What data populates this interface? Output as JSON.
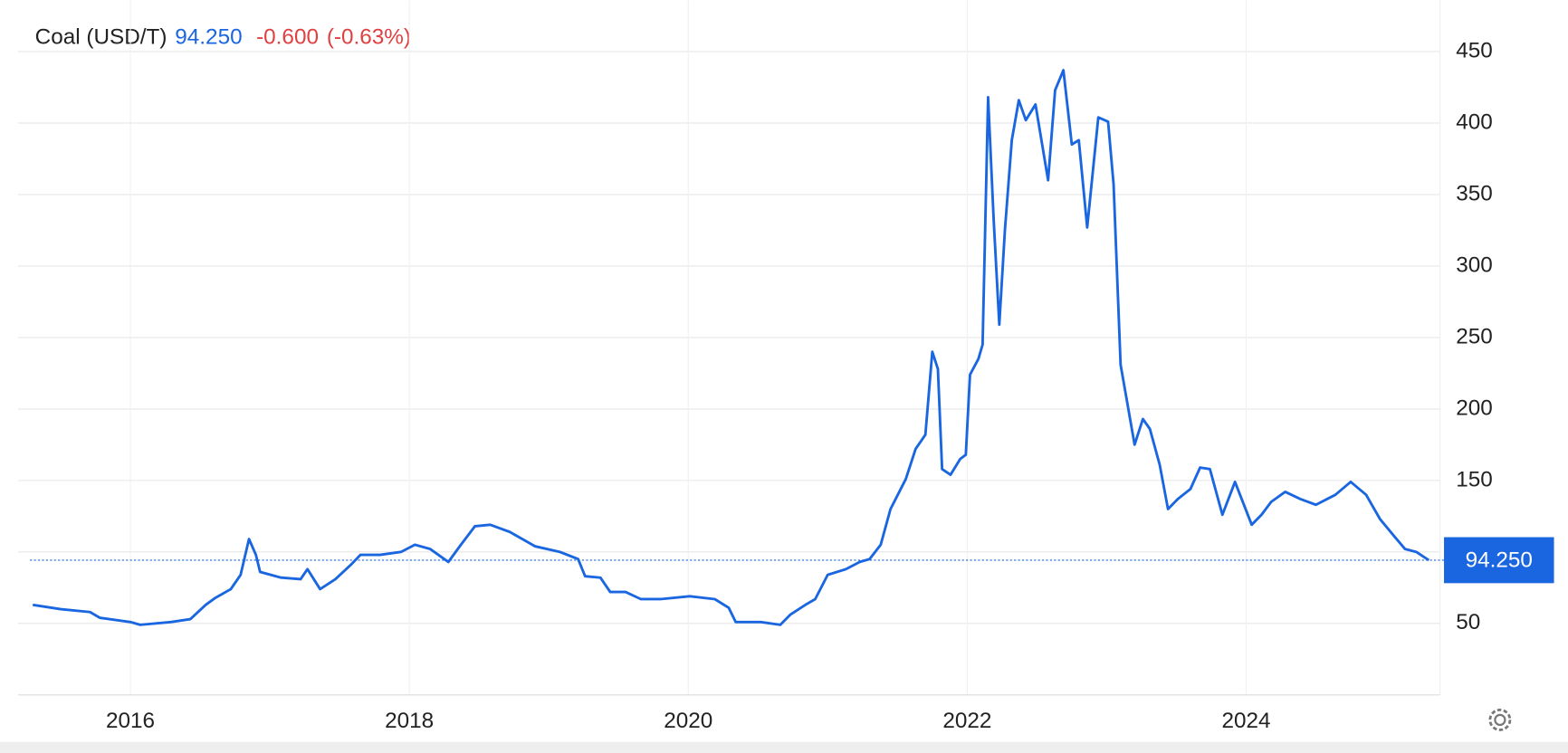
{
  "chart_data": {
    "type": "line",
    "title": "Coal (USD/T)",
    "price": "94.250",
    "change": "-0.600",
    "change_pct": "(-0.63%)",
    "x": [
      2015.3,
      2015.5,
      2015.71,
      2015.78,
      2016.0,
      2016.07,
      2016.29,
      2016.43,
      2016.54,
      2016.61,
      2016.72,
      2016.79,
      2016.85,
      2016.9,
      2016.93,
      2017.08,
      2017.22,
      2017.27,
      2017.36,
      2017.47,
      2017.58,
      2017.65,
      2017.79,
      2017.94,
      2018.04,
      2018.15,
      2018.28,
      2018.37,
      2018.47,
      2018.58,
      2018.72,
      2018.9,
      2019.08,
      2019.21,
      2019.26,
      2019.37,
      2019.44,
      2019.55,
      2019.66,
      2019.8,
      2020.01,
      2020.19,
      2020.29,
      2020.34,
      2020.52,
      2020.66,
      2020.73,
      2020.84,
      2020.91,
      2021.0,
      2021.13,
      2021.23,
      2021.3,
      2021.38,
      2021.45,
      2021.56,
      2021.63,
      2021.7,
      2021.75,
      2021.79,
      2021.82,
      2021.88,
      2021.95,
      2021.99,
      2022.02,
      2022.08,
      2022.11,
      2022.15,
      2022.19,
      2022.23,
      2022.27,
      2022.32,
      2022.37,
      2022.42,
      2022.49,
      2022.58,
      2022.63,
      2022.69,
      2022.75,
      2022.8,
      2022.86,
      2022.94,
      2023.01,
      2023.05,
      2023.1,
      2023.15,
      2023.2,
      2023.26,
      2023.31,
      2023.38,
      2023.44,
      2023.51,
      2023.6,
      2023.67,
      2023.74,
      2023.83,
      2023.92,
      2024.04,
      2024.11,
      2024.18,
      2024.28,
      2024.39,
      2024.5,
      2024.64,
      2024.75,
      2024.86,
      2024.96,
      2025.07,
      2025.14,
      2025.22,
      2025.31
    ],
    "series": [
      {
        "name": "Coal (USD/T)",
        "color": "#1a66e0",
        "values": [
          63,
          60,
          58,
          54,
          51,
          49,
          51,
          53,
          63,
          68,
          74,
          84,
          109,
          98,
          86,
          82,
          81,
          88,
          74,
          81,
          91,
          98,
          98,
          100,
          105,
          102,
          93,
          105,
          118,
          119,
          114,
          104,
          100,
          95,
          83,
          82,
          72,
          72,
          67,
          67,
          69,
          67,
          61,
          51,
          51,
          49,
          56,
          63,
          67,
          84,
          88,
          93,
          95,
          105,
          130,
          151,
          172,
          182,
          240,
          228,
          158,
          154,
          165,
          168,
          224,
          235,
          245,
          418,
          332,
          259,
          325,
          388,
          416,
          402,
          413,
          360,
          423,
          437,
          385,
          388,
          327,
          404,
          401,
          357,
          231,
          203,
          175,
          193,
          186,
          161,
          130,
          137,
          144,
          159,
          158,
          126,
          149,
          119,
          126,
          135,
          142,
          137,
          133,
          140,
          149,
          140,
          123,
          110,
          102,
          100,
          94.25
        ]
      }
    ],
    "xlim": [
      2015.28,
      2025.39
    ],
    "xticks": [
      2016,
      2018,
      2020,
      2022,
      2024
    ],
    "ylim": [
      0,
      486
    ],
    "yticks": [
      50,
      100,
      150,
      200,
      250,
      300,
      350,
      400,
      450
    ],
    "grid": true
  }
}
